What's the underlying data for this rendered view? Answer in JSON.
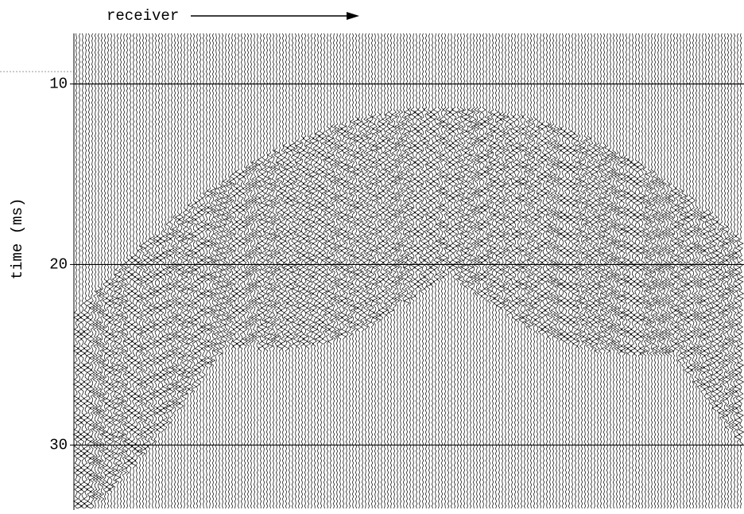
{
  "chart_data": {
    "type": "seismic",
    "title": "receiver",
    "ylabel": "time (ms)",
    "ylim": [
      7.2,
      33.6
    ],
    "yticks": [
      10,
      20,
      30
    ],
    "grid": true,
    "color": "#000000"
  }
}
